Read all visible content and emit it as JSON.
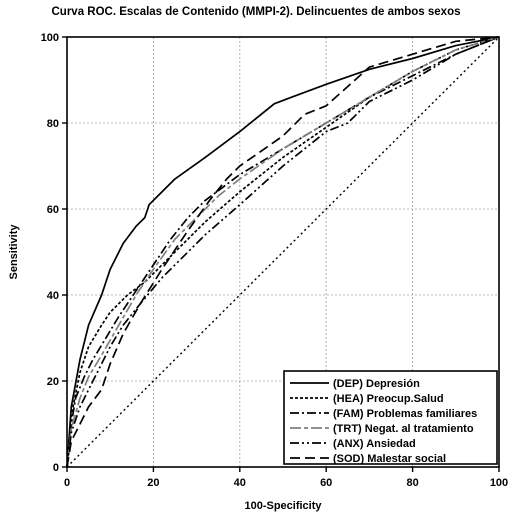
{
  "chart_data": {
    "type": "line",
    "title": "Curva ROC. Escalas de Contenido (MMPI-2). Delincuentes de ambos sexos",
    "xlabel": "100-Specificity",
    "ylabel": "Sensitivity",
    "xlim": [
      0,
      100
    ],
    "ylim": [
      0,
      100
    ],
    "xticks": [
      0,
      20,
      40,
      60,
      80,
      100
    ],
    "yticks": [
      0,
      20,
      40,
      60,
      80,
      100
    ],
    "grid": true,
    "legend_position": "bottom-right",
    "series": [
      {
        "name": "(DEP) Depresión",
        "dash": "solid",
        "color": "#000000",
        "x": [
          0,
          1,
          3,
          5,
          8,
          10,
          13,
          16,
          18,
          19,
          20,
          25,
          32,
          40,
          48,
          52,
          60,
          70,
          80,
          90,
          100
        ],
        "y": [
          0,
          14,
          25,
          33,
          40,
          46,
          52,
          56,
          58,
          61,
          62,
          67,
          72,
          78,
          84.5,
          86,
          89,
          92.5,
          95,
          98,
          100
        ]
      },
      {
        "name": "(HEA) Preocup.Salud",
        "dash": "3,2",
        "color": "#000000",
        "x": [
          0,
          1,
          3,
          5,
          8,
          10,
          14,
          18,
          22,
          27,
          32,
          40,
          50,
          60,
          70,
          80,
          90,
          100
        ],
        "y": [
          0,
          12,
          22,
          28,
          33,
          36,
          40,
          43,
          47,
          52,
          57,
          64,
          72,
          79,
          86,
          92,
          97,
          100
        ]
      },
      {
        "name": "(FAM) Problemas familiares",
        "dash": "9,3,2,3",
        "color": "#000000",
        "x": [
          0,
          1,
          2,
          4,
          6,
          9,
          12,
          16,
          20,
          24,
          28,
          32,
          40,
          50,
          60,
          70,
          80,
          90,
          100
        ],
        "y": [
          0,
          10,
          16,
          21,
          25,
          30,
          35,
          41,
          47,
          53,
          58,
          62,
          68,
          74,
          80,
          86,
          91,
          96,
          100
        ]
      },
      {
        "name": "(TRT) Negat. al tratamiento",
        "dash": "11,3,4,3",
        "color": "#808080",
        "x": [
          0,
          1,
          3,
          5,
          8,
          12,
          16,
          20,
          25,
          30,
          35,
          40,
          50,
          60,
          70,
          80,
          90,
          100
        ],
        "y": [
          0,
          9,
          16,
          21,
          26,
          33,
          40,
          46,
          53,
          58,
          63,
          67,
          74,
          80,
          86,
          92,
          97,
          100
        ]
      },
      {
        "name": "(ANX) Ansiedad",
        "dash": "9,3,2,3,2,3",
        "color": "#000000",
        "x": [
          0,
          1,
          3,
          5,
          8,
          10,
          13,
          17,
          22,
          27,
          32,
          40,
          50,
          60,
          65,
          70,
          80,
          90,
          100
        ],
        "y": [
          0,
          8,
          14,
          18,
          24,
          28,
          33,
          38,
          44,
          49,
          54,
          61,
          70,
          78,
          80,
          85,
          90,
          96,
          100
        ]
      },
      {
        "name": "(SOD) Malestar social",
        "dash": "10,5",
        "color": "#000000",
        "x": [
          0,
          1,
          3,
          5,
          8,
          10,
          13,
          17,
          22,
          28,
          33,
          37,
          40,
          50,
          55,
          60,
          70,
          80,
          90,
          100
        ],
        "y": [
          0,
          6,
          10,
          14,
          18,
          24,
          31,
          38,
          46,
          55,
          62,
          67,
          70,
          77,
          82,
          84,
          93,
          96,
          99,
          100
        ]
      },
      {
        "name": "",
        "dash": "2,3",
        "color": "#000000",
        "x": [
          0,
          100
        ],
        "y": [
          0,
          100
        ]
      }
    ]
  }
}
